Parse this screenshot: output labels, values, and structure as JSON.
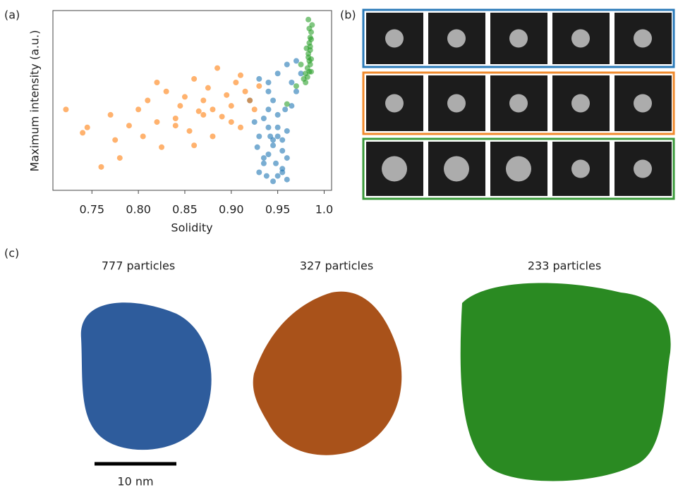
{
  "chart_data": {
    "type": "scatter",
    "panel_label": "(a)",
    "x_label": "Solidity",
    "y_label": "Maximum intensity (a.u.)",
    "xlim": [
      0.708,
      1.008
    ],
    "ylim": [
      0,
      1
    ],
    "xticks": [
      0.75,
      {
        "value": 0.8,
        "label": "0.80"
      },
      0.85,
      {
        "value": 0.9,
        "label": "0.90"
      },
      0.95,
      {
        "value": 1.0,
        "label": "1.0"
      }
    ],
    "series": [
      {
        "color": "#1f77b4",
        "x": [
          0.93,
          0.935,
          0.94,
          0.945,
          0.95,
          0.955,
          0.96,
          0.94,
          0.945,
          0.95,
          0.955,
          0.93,
          0.935,
          0.94,
          0.945,
          0.95,
          0.955,
          0.96,
          0.965,
          0.97,
          0.925,
          0.92,
          0.94,
          0.95,
          0.945,
          0.955,
          0.96,
          0.935,
          0.95,
          0.94,
          0.93,
          0.96,
          0.965,
          0.97,
          0.975,
          0.958,
          0.948,
          0.938,
          0.928,
          0.942
        ],
        "values": [
          0.1,
          0.15,
          0.2,
          0.25,
          0.3,
          0.12,
          0.18,
          0.35,
          0.05,
          0.08,
          0.22,
          0.3,
          0.4,
          0.45,
          0.5,
          0.42,
          0.28,
          0.33,
          0.47,
          0.55,
          0.38,
          0.5,
          0.6,
          0.65,
          0.28,
          0.1,
          0.06,
          0.18,
          0.35,
          0.55,
          0.62,
          0.7,
          0.6,
          0.72,
          0.65,
          0.45,
          0.15,
          0.08,
          0.24,
          0.3
        ]
      },
      {
        "color": "#ff7f0e",
        "x": [
          0.722,
          0.74,
          0.745,
          0.76,
          0.77,
          0.775,
          0.78,
          0.79,
          0.8,
          0.805,
          0.81,
          0.82,
          0.825,
          0.83,
          0.84,
          0.845,
          0.85,
          0.855,
          0.86,
          0.865,
          0.87,
          0.875,
          0.88,
          0.885,
          0.89,
          0.895,
          0.9,
          0.905,
          0.91,
          0.915,
          0.92,
          0.925,
          0.93,
          0.88,
          0.86,
          0.84,
          0.82,
          0.9,
          0.91,
          0.87
        ],
        "values": [
          0.45,
          0.32,
          0.35,
          0.13,
          0.42,
          0.28,
          0.18,
          0.36,
          0.45,
          0.3,
          0.5,
          0.38,
          0.24,
          0.55,
          0.4,
          0.47,
          0.52,
          0.33,
          0.62,
          0.44,
          0.5,
          0.57,
          0.45,
          0.68,
          0.41,
          0.53,
          0.47,
          0.6,
          0.35,
          0.55,
          0.5,
          0.45,
          0.58,
          0.3,
          0.25,
          0.36,
          0.6,
          0.38,
          0.64,
          0.42
        ]
      },
      {
        "color": "#2ca02c",
        "x": [
          0.98,
          0.982,
          0.984,
          0.985,
          0.986,
          0.983,
          0.981,
          0.984,
          0.985,
          0.986,
          0.987,
          0.983,
          0.982,
          0.984,
          0.985,
          0.986,
          0.98,
          0.978,
          0.975,
          0.97,
          0.96,
          0.984,
          0.985,
          0.983,
          0.986
        ],
        "values": [
          0.6,
          0.63,
          0.66,
          0.7,
          0.73,
          0.76,
          0.79,
          0.82,
          0.85,
          0.88,
          0.92,
          0.95,
          0.68,
          0.72,
          0.78,
          0.84,
          0.65,
          0.62,
          0.7,
          0.58,
          0.48,
          0.9,
          0.8,
          0.74,
          0.66
        ]
      }
    ]
  },
  "panel_b": {
    "label": "(b)",
    "row_colors": [
      "#2a7ab8",
      "#f08a2c",
      "#3a9a3a"
    ]
  },
  "panel_c": {
    "label": "(c)",
    "scale_bar": "10 nm",
    "renders": [
      {
        "caption": "777 particles",
        "color": "#2e5c9c"
      },
      {
        "caption": "327 particles",
        "color": "#a9521a"
      },
      {
        "caption": "233 particles",
        "color": "#2a8a22"
      }
    ]
  }
}
